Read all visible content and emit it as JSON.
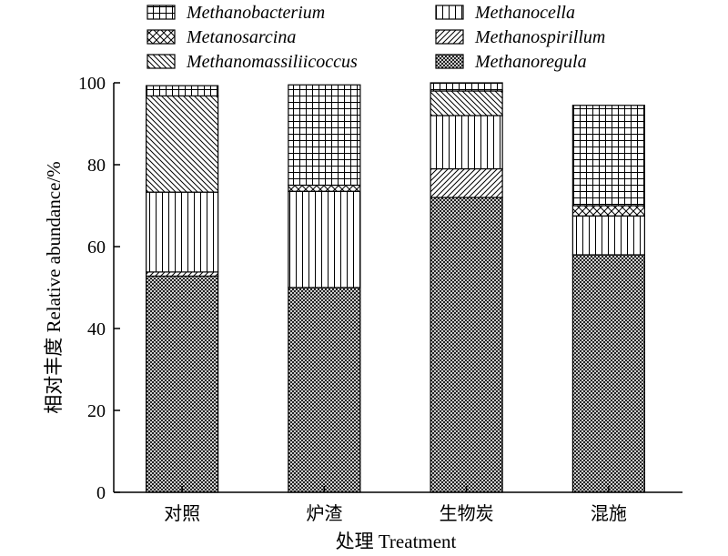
{
  "chart_data": {
    "type": "bar",
    "stacked": true,
    "categories": [
      "对照",
      "炉渣",
      "生物炭",
      "混施"
    ],
    "xlabel": "处理 Treatment",
    "ylabel": "相对丰度 Relative abundance/%",
    "ylim": [
      0,
      100
    ],
    "yticks": [
      0,
      20,
      40,
      60,
      80,
      100
    ],
    "grid": false,
    "legend_position": "top",
    "series": [
      {
        "name": "Methanoregula",
        "pattern": "crosshatch-dense",
        "values": [
          52.8,
          50.0,
          72.0,
          58.0
        ]
      },
      {
        "name": "Methanospirillum",
        "pattern": "diagonal-forward",
        "values": [
          1.0,
          0.0,
          7.0,
          0.0
        ]
      },
      {
        "name": "Methanocella",
        "pattern": "vertical",
        "values": [
          19.5,
          23.5,
          13.0,
          9.5
        ]
      },
      {
        "name": "Metanosarcina",
        "pattern": "diamond-crosshatch",
        "values": [
          0.0,
          1.5,
          0.0,
          2.5
        ]
      },
      {
        "name": "Methanomassiliicoccus",
        "pattern": "diagonal-backward",
        "values": [
          23.5,
          0.0,
          6.0,
          0.0
        ]
      },
      {
        "name": "Methanobacterium",
        "pattern": "grid",
        "values": [
          2.5,
          24.5,
          2.0,
          24.5
        ]
      }
    ],
    "legend_order": [
      "Methanobacterium",
      "Methanocella",
      "Metanosarcina",
      "Methanospirillum",
      "Methanomassiliicoccus",
      "Methanoregula"
    ]
  }
}
